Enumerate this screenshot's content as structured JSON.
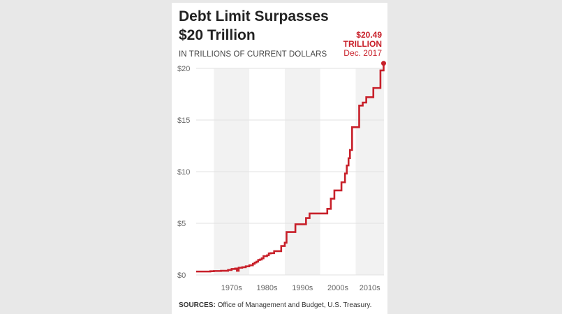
{
  "chart_data": {
    "type": "line",
    "title": "Debt Limit Surpasses $20 Trillion",
    "subtitle": "IN TRILLIONS OF CURRENT DOLLARS",
    "ylim": [
      0,
      20
    ],
    "yticks": [
      0,
      5,
      10,
      15,
      20
    ],
    "ytick_labels": [
      "$0",
      "$5",
      "$10",
      "$15",
      "$20"
    ],
    "xlim": [
      1965,
      2018
    ],
    "decades": [
      {
        "label": "1970s",
        "start": 1970,
        "end": 1980
      },
      {
        "label": "1980s",
        "start": 1980,
        "end": 1990
      },
      {
        "label": "1990s",
        "start": 1990,
        "end": 2000
      },
      {
        "label": "2000s",
        "start": 2000,
        "end": 2010
      },
      {
        "label": "2010s",
        "start": 2010,
        "end": 2018
      }
    ],
    "series": [
      {
        "color": "#c8202a",
        "step": true,
        "x": [
          1965,
          1969,
          1970,
          1972,
          1974,
          1975,
          1976,
          1976.5,
          1977,
          1978,
          1979,
          1980,
          1981,
          1981.5,
          1982,
          1982.5,
          1983,
          1983.5,
          1984,
          1985,
          1985.5,
          1986,
          1987,
          1989,
          1990,
          1990.5,
          1993,
          1996,
          1997,
          1998,
          2001,
          2002,
          2003,
          2004,
          2005,
          2006,
          2007,
          2007.5,
          2008,
          2008.4,
          2008.7,
          2009,
          2010,
          2011,
          2011.5,
          2012,
          2013,
          2014,
          2015,
          2017,
          2017.9
        ],
        "y": [
          0.33,
          0.36,
          0.38,
          0.4,
          0.48,
          0.58,
          0.62,
          0.4,
          0.7,
          0.75,
          0.83,
          0.93,
          1.08,
          1.2,
          1.29,
          1.45,
          1.49,
          1.61,
          1.82,
          1.9,
          2.08,
          2.11,
          2.3,
          2.8,
          3.12,
          4.15,
          4.9,
          5.5,
          5.95,
          5.95,
          5.95,
          6.4,
          7.38,
          8.18,
          8.18,
          8.97,
          9.82,
          10.6,
          11.3,
          12.1,
          12.1,
          14.3,
          14.3,
          16.4,
          16.4,
          16.69,
          17.21,
          17.21,
          18.1,
          19.8,
          20.49
        ]
      }
    ],
    "annotation": {
      "value": "$20.49",
      "unit": "TRILLION",
      "date": "Dec. 2017"
    },
    "source_label": "SOURCES:",
    "source_text": "Office of Management and Budget, U.S. Treasury.",
    "colors": {
      "line": "#c8202a",
      "band": "#f2f2f2",
      "grid": "#e2e2e2",
      "axis": "#666666"
    }
  }
}
